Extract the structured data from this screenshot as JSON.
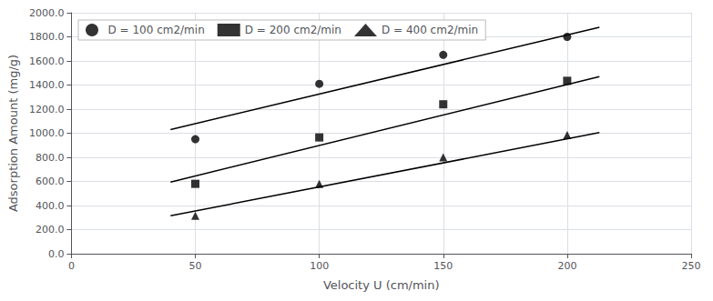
{
  "chart_data": {
    "type": "scatter",
    "xlabel": "Velocity U (cm/min)",
    "ylabel": "Adsorption Amount (mg/g)",
    "xlim": [
      0,
      250
    ],
    "ylim": [
      0.0,
      2000.0
    ],
    "xticks": [
      0,
      50,
      100,
      150,
      200,
      250
    ],
    "yticks": [
      {
        "value": 0.0,
        "label": "0.0"
      },
      {
        "value": 200.0,
        "label": "200.0"
      },
      {
        "value": 400.0,
        "label": "400.0"
      },
      {
        "value": 600.0,
        "label": "600.0"
      },
      {
        "value": 800.0,
        "label": "800.0"
      },
      {
        "value": 1000.0,
        "label": "1000.0"
      },
      {
        "value": 1200.0,
        "label": "1200.0"
      },
      {
        "value": 1400.0,
        "label": "1400.0"
      },
      {
        "value": 1600.0,
        "label": "1600.0"
      },
      {
        "value": 1800.0,
        "label": "1800.0"
      },
      {
        "value": 2000.0,
        "label": "2000.0"
      }
    ],
    "grid": true,
    "legend": "upper left",
    "series": [
      {
        "name": "D = 100 cm2/min",
        "marker": "circle",
        "color": "#000000",
        "x": [
          50,
          100,
          150,
          200
        ],
        "values": [
          950,
          1410,
          1650,
          1800
        ],
        "trendline": {
          "x": [
            40,
            213
          ],
          "values": [
            1030,
            1880
          ]
        }
      },
      {
        "name": "D = 200 cm2/min",
        "marker": "square",
        "color": "#000000",
        "x": [
          50,
          100,
          150,
          200
        ],
        "values": [
          580,
          965,
          1240,
          1435
        ],
        "trendline": {
          "x": [
            40,
            213
          ],
          "values": [
            595,
            1470
          ]
        }
      },
      {
        "name": "D = 400 cm2/min",
        "marker": "triangle",
        "color": "#000000",
        "x": [
          50,
          100,
          150,
          200
        ],
        "values": [
          315,
          580,
          800,
          985
        ],
        "trendline": {
          "x": [
            40,
            213
          ],
          "values": [
            315,
            1005
          ]
        }
      }
    ]
  }
}
